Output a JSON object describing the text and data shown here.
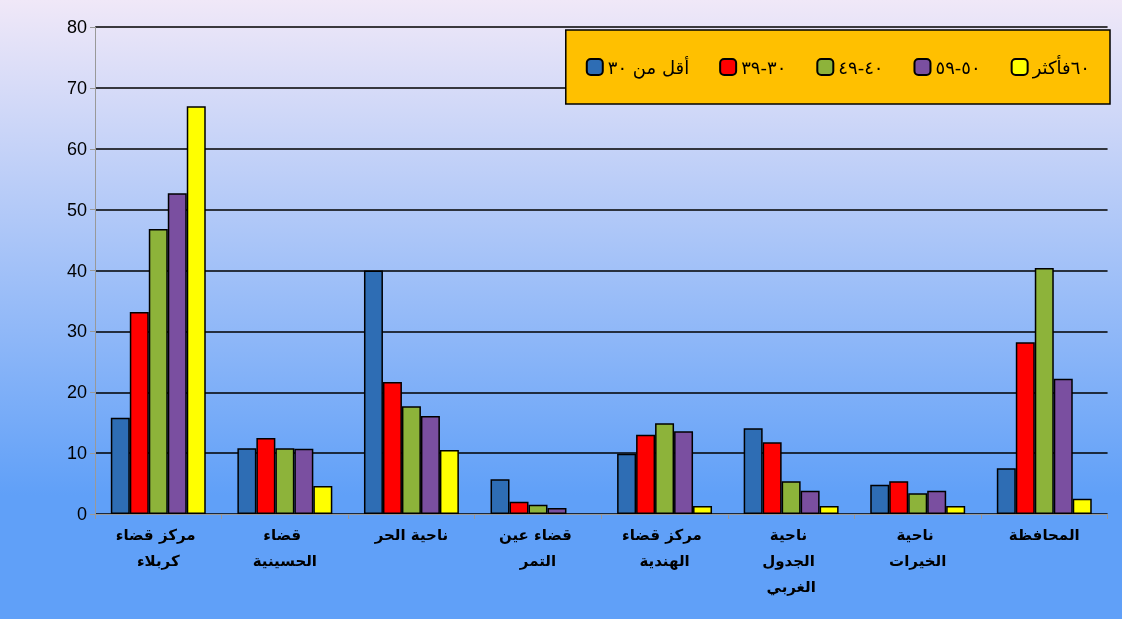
{
  "chart_data": {
    "type": "bar",
    "categories": [
      "مركز قضاء كربلاء",
      "قضاء الحسينية",
      "ناحية الحر",
      "قضاء عين التمر",
      "مركز قضاء الهندية",
      "ناحية الجدول الغربي",
      "ناحية الخيرات",
      "المحافظة"
    ],
    "series": [
      {
        "name": "أقل من ٣٠",
        "color": "#2e6db4",
        "values": [
          15.8,
          10.8,
          40,
          5.7,
          9.9,
          14.1,
          4.8,
          7.5
        ]
      },
      {
        "name": "٣٠-٣٩",
        "color": "#ff0000",
        "values": [
          33.2,
          12.5,
          21.7,
          2,
          13,
          11.8,
          5.4,
          28.2
        ]
      },
      {
        "name": "٤٠-٤٩",
        "color": "#8db33a",
        "values": [
          46.8,
          10.8,
          17.7,
          1.5,
          14.9,
          5.4,
          3.4,
          40.4
        ]
      },
      {
        "name": "٥٠-٥٩",
        "color": "#7a4fa0",
        "values": [
          52.7,
          10.7,
          16.1,
          1,
          13.6,
          3.8,
          3.8,
          22.2
        ]
      },
      {
        "name": "٦٠فأكثر",
        "color": "#ffff00",
        "values": [
          67,
          4.6,
          10.5,
          null,
          1.3,
          1.3,
          1.3,
          2.5
        ]
      }
    ],
    "ylim": [
      0,
      80
    ],
    "yticks": [
      0,
      10,
      20,
      30,
      40,
      50,
      60,
      70,
      80
    ],
    "grid": "y",
    "legend": "top right"
  }
}
